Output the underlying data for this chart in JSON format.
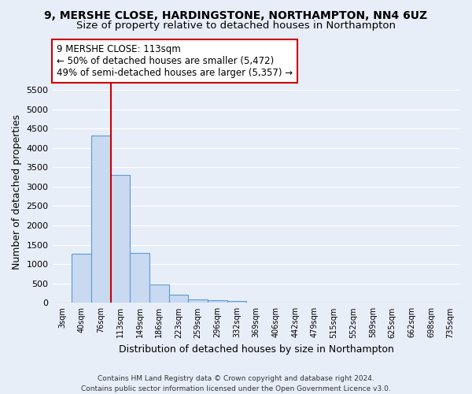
{
  "title_line1": "9, MERSHE CLOSE, HARDINGSTONE, NORTHAMPTON, NN4 6UZ",
  "title_line2": "Size of property relative to detached houses in Northampton",
  "xlabel": "Distribution of detached houses by size in Northampton",
  "ylabel": "Number of detached properties",
  "footer_line1": "Contains HM Land Registry data © Crown copyright and database right 2024.",
  "footer_line2": "Contains public sector information licensed under the Open Government Licence v3.0.",
  "categories": [
    "3sqm",
    "40sqm",
    "76sqm",
    "113sqm",
    "149sqm",
    "186sqm",
    "223sqm",
    "259sqm",
    "296sqm",
    "332sqm",
    "369sqm",
    "406sqm",
    "442sqm",
    "479sqm",
    "515sqm",
    "552sqm",
    "589sqm",
    "625sqm",
    "662sqm",
    "698sqm",
    "735sqm"
  ],
  "bar_values": [
    0,
    1270,
    4330,
    3300,
    1280,
    480,
    200,
    90,
    70,
    55,
    0,
    0,
    0,
    0,
    0,
    0,
    0,
    0,
    0,
    0,
    0
  ],
  "bar_color": "#c9d9f0",
  "bar_edge_color": "#5b9bd5",
  "vline_index": 3,
  "vline_color": "#cc0000",
  "annotation_line1": "9 MERSHE CLOSE: 113sqm",
  "annotation_line2": "← 50% of detached houses are smaller (5,472)",
  "annotation_line3": "49% of semi-detached houses are larger (5,357) →",
  "annotation_box_color": "#ffffff",
  "annotation_box_edge": "#cc0000",
  "ylim": [
    0,
    5750
  ],
  "yticks": [
    0,
    500,
    1000,
    1500,
    2000,
    2500,
    3000,
    3500,
    4000,
    4500,
    5000,
    5500
  ],
  "bg_color": "#e8eef8",
  "plot_bg_color": "#e8eef8",
  "grid_color": "#ffffff",
  "title_fontsize": 10,
  "subtitle_fontsize": 9.5,
  "axis_label_fontsize": 9,
  "tick_fontsize": 8,
  "annotation_fontsize": 8.5,
  "footer_fontsize": 6.5
}
